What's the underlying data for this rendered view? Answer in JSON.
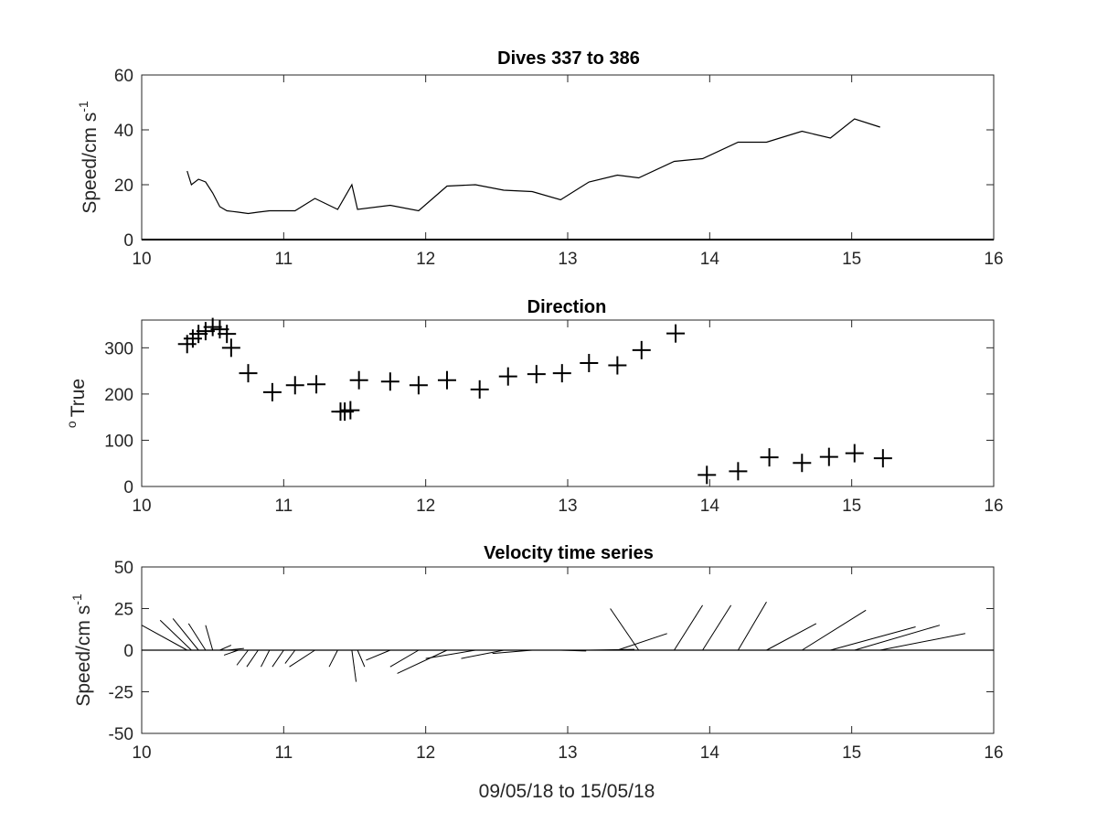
{
  "chart_data": [
    {
      "type": "line",
      "title": "Dives 337 to 386",
      "ylabel": "Speed/cm s",
      "ylabel_sup": "-1",
      "xlabel": "",
      "xlim": [
        10,
        16
      ],
      "ylim": [
        0,
        60
      ],
      "xticks": [
        "10",
        "11",
        "12",
        "13",
        "14",
        "15",
        "16"
      ],
      "yticks": [
        "0",
        "20",
        "40",
        "60"
      ],
      "series": [
        {
          "x": [
            10.32,
            10.35,
            10.4,
            10.45,
            10.5,
            10.55,
            10.6,
            10.68,
            10.75,
            10.82,
            10.9,
            11.0,
            11.08,
            11.22,
            11.38,
            11.48,
            11.52,
            11.75,
            11.95,
            12.15,
            12.35,
            12.55,
            12.75,
            12.95,
            13.15,
            13.35,
            13.5,
            13.75,
            13.95,
            14.2,
            14.4,
            14.65,
            14.85,
            15.02,
            15.2
          ],
          "y": [
            25,
            20,
            22,
            21,
            17,
            12,
            10.5,
            10,
            9.5,
            10,
            10.5,
            10.5,
            10.5,
            15,
            11,
            20,
            11,
            12.5,
            10.5,
            19.5,
            20,
            18,
            17.5,
            14.5,
            21,
            23.5,
            22.5,
            28.5,
            29.5,
            35.5,
            35.5,
            39.5,
            37,
            44,
            41
          ]
        }
      ]
    },
    {
      "type": "scatter",
      "title": "Direction",
      "ylabel": "True",
      "ylabel_sup": "o",
      "xlabel": "",
      "xlim": [
        10,
        16
      ],
      "ylim": [
        0,
        360
      ],
      "xticks": [
        "10",
        "11",
        "12",
        "13",
        "14",
        "15",
        "16"
      ],
      "yticks": [
        "0",
        "100",
        "200",
        "300"
      ],
      "marker": "+",
      "series": [
        {
          "x": [
            10.32,
            10.36,
            10.4,
            10.45,
            10.5,
            10.55,
            10.6,
            10.63,
            10.75,
            10.92,
            11.08,
            11.23,
            11.4,
            11.43,
            11.47,
            11.53,
            11.75,
            11.95,
            12.15,
            12.38,
            12.58,
            12.78,
            12.96,
            13.15,
            13.35,
            13.52,
            13.76,
            13.98,
            14.2,
            14.42,
            14.65,
            14.84,
            15.02,
            15.22
          ],
          "y": [
            308,
            320,
            330,
            336,
            345,
            340,
            330,
            300,
            245,
            204,
            219,
            221,
            162,
            162,
            165,
            230,
            227,
            219,
            230,
            210,
            238,
            243,
            245,
            267,
            262,
            295,
            331,
            25,
            33,
            63,
            51,
            64,
            72,
            61
          ]
        }
      ]
    },
    {
      "type": "line",
      "subtype": "stick-plot",
      "title": "Velocity time series",
      "ylabel": "Speed/cm s",
      "ylabel_sup": "-1",
      "xlabel": "09/05/18 to 15/05/18",
      "xlim": [
        10,
        16
      ],
      "ylim": [
        -50,
        50
      ],
      "xticks": [
        "10",
        "11",
        "12",
        "13",
        "14",
        "15",
        "16"
      ],
      "yticks": [
        "-50",
        "-25",
        "0",
        "25",
        "50"
      ],
      "series": [
        {
          "x": [
            10.32,
            10.35,
            10.4,
            10.45,
            10.5,
            10.55,
            10.6,
            10.68,
            10.75,
            10.82,
            10.9,
            11.0,
            11.08,
            11.22,
            11.38,
            11.48,
            11.52,
            11.75,
            11.95,
            12.15,
            12.35,
            12.55,
            12.75,
            12.95,
            13.15,
            13.35,
            13.5,
            13.75,
            13.95,
            14.2,
            14.4,
            14.65,
            14.85,
            15.02,
            15.2
          ],
          "u": [
            -0.32,
            -0.22,
            -0.18,
            -0.12,
            -0.05,
            0.08,
            0.12,
            -0.1,
            -0.08,
            -0.08,
            -0.06,
            -0.08,
            -0.07,
            -0.18,
            -0.06,
            0.03,
            0.05,
            -0.17,
            -0.2,
            -0.35,
            -0.35,
            -0.3,
            -0.28,
            0.18,
            0.32,
            0.35,
            -0.2,
            0.2,
            0.2,
            0.2,
            0.35,
            0.45,
            0.6,
            0.6,
            0.6
          ],
          "v": [
            15,
            18,
            19,
            16,
            15,
            3,
            1,
            -3,
            -9,
            -10,
            -10,
            -10,
            -8,
            -10,
            -10,
            -19,
            -10,
            -6,
            -10,
            -14,
            -5,
            -5,
            -2,
            -0.5,
            0.5,
            10,
            25,
            27,
            27,
            29,
            16,
            24,
            14,
            15,
            10
          ]
        }
      ]
    }
  ]
}
